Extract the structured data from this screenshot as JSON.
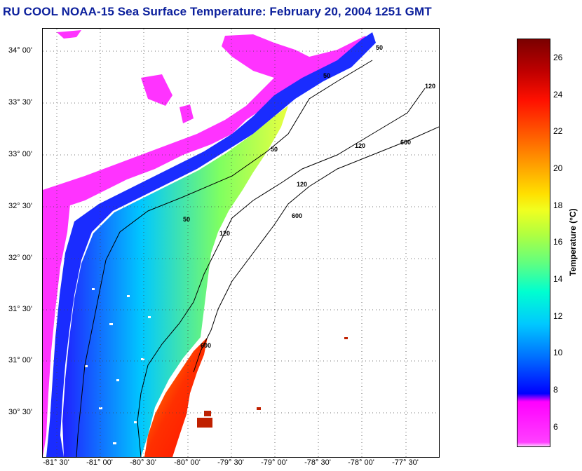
{
  "header": {
    "title": "RU COOL  NOAA-15  Sea Surface Temperature:  February 20, 2004 1251 GMT"
  },
  "map": {
    "lat_labels": [
      "34° 00'",
      "33° 30'",
      "33° 00'",
      "32° 30'",
      "32° 00'",
      "31° 30'",
      "31° 00'",
      "30° 30'"
    ],
    "lon_labels": [
      "-81° 30'",
      "-81° 00'",
      "-80° 30'",
      "-80° 00'",
      "-79° 30'",
      "-79° 00'",
      "-78° 30'",
      "-78° 00'",
      "-77° 30'"
    ],
    "isobath_labels": [
      "50",
      "50",
      "50",
      "50",
      "120",
      "120",
      "120",
      "120",
      "600",
      "600",
      "600"
    ]
  },
  "colorbar": {
    "label": "Temperature (°C)",
    "ticks": [
      "26",
      "24",
      "22",
      "20",
      "18",
      "16",
      "14",
      "12",
      "10",
      "8",
      "6"
    ],
    "colors": {
      "warm": "#8b0000",
      "hot": "#ff2000",
      "orange": "#ff8c00",
      "yellow": "#ffff00",
      "green": "#7cfc00",
      "cyan": "#00e5ff",
      "blue": "#1040ff",
      "magenta": "#ff33ff"
    }
  }
}
